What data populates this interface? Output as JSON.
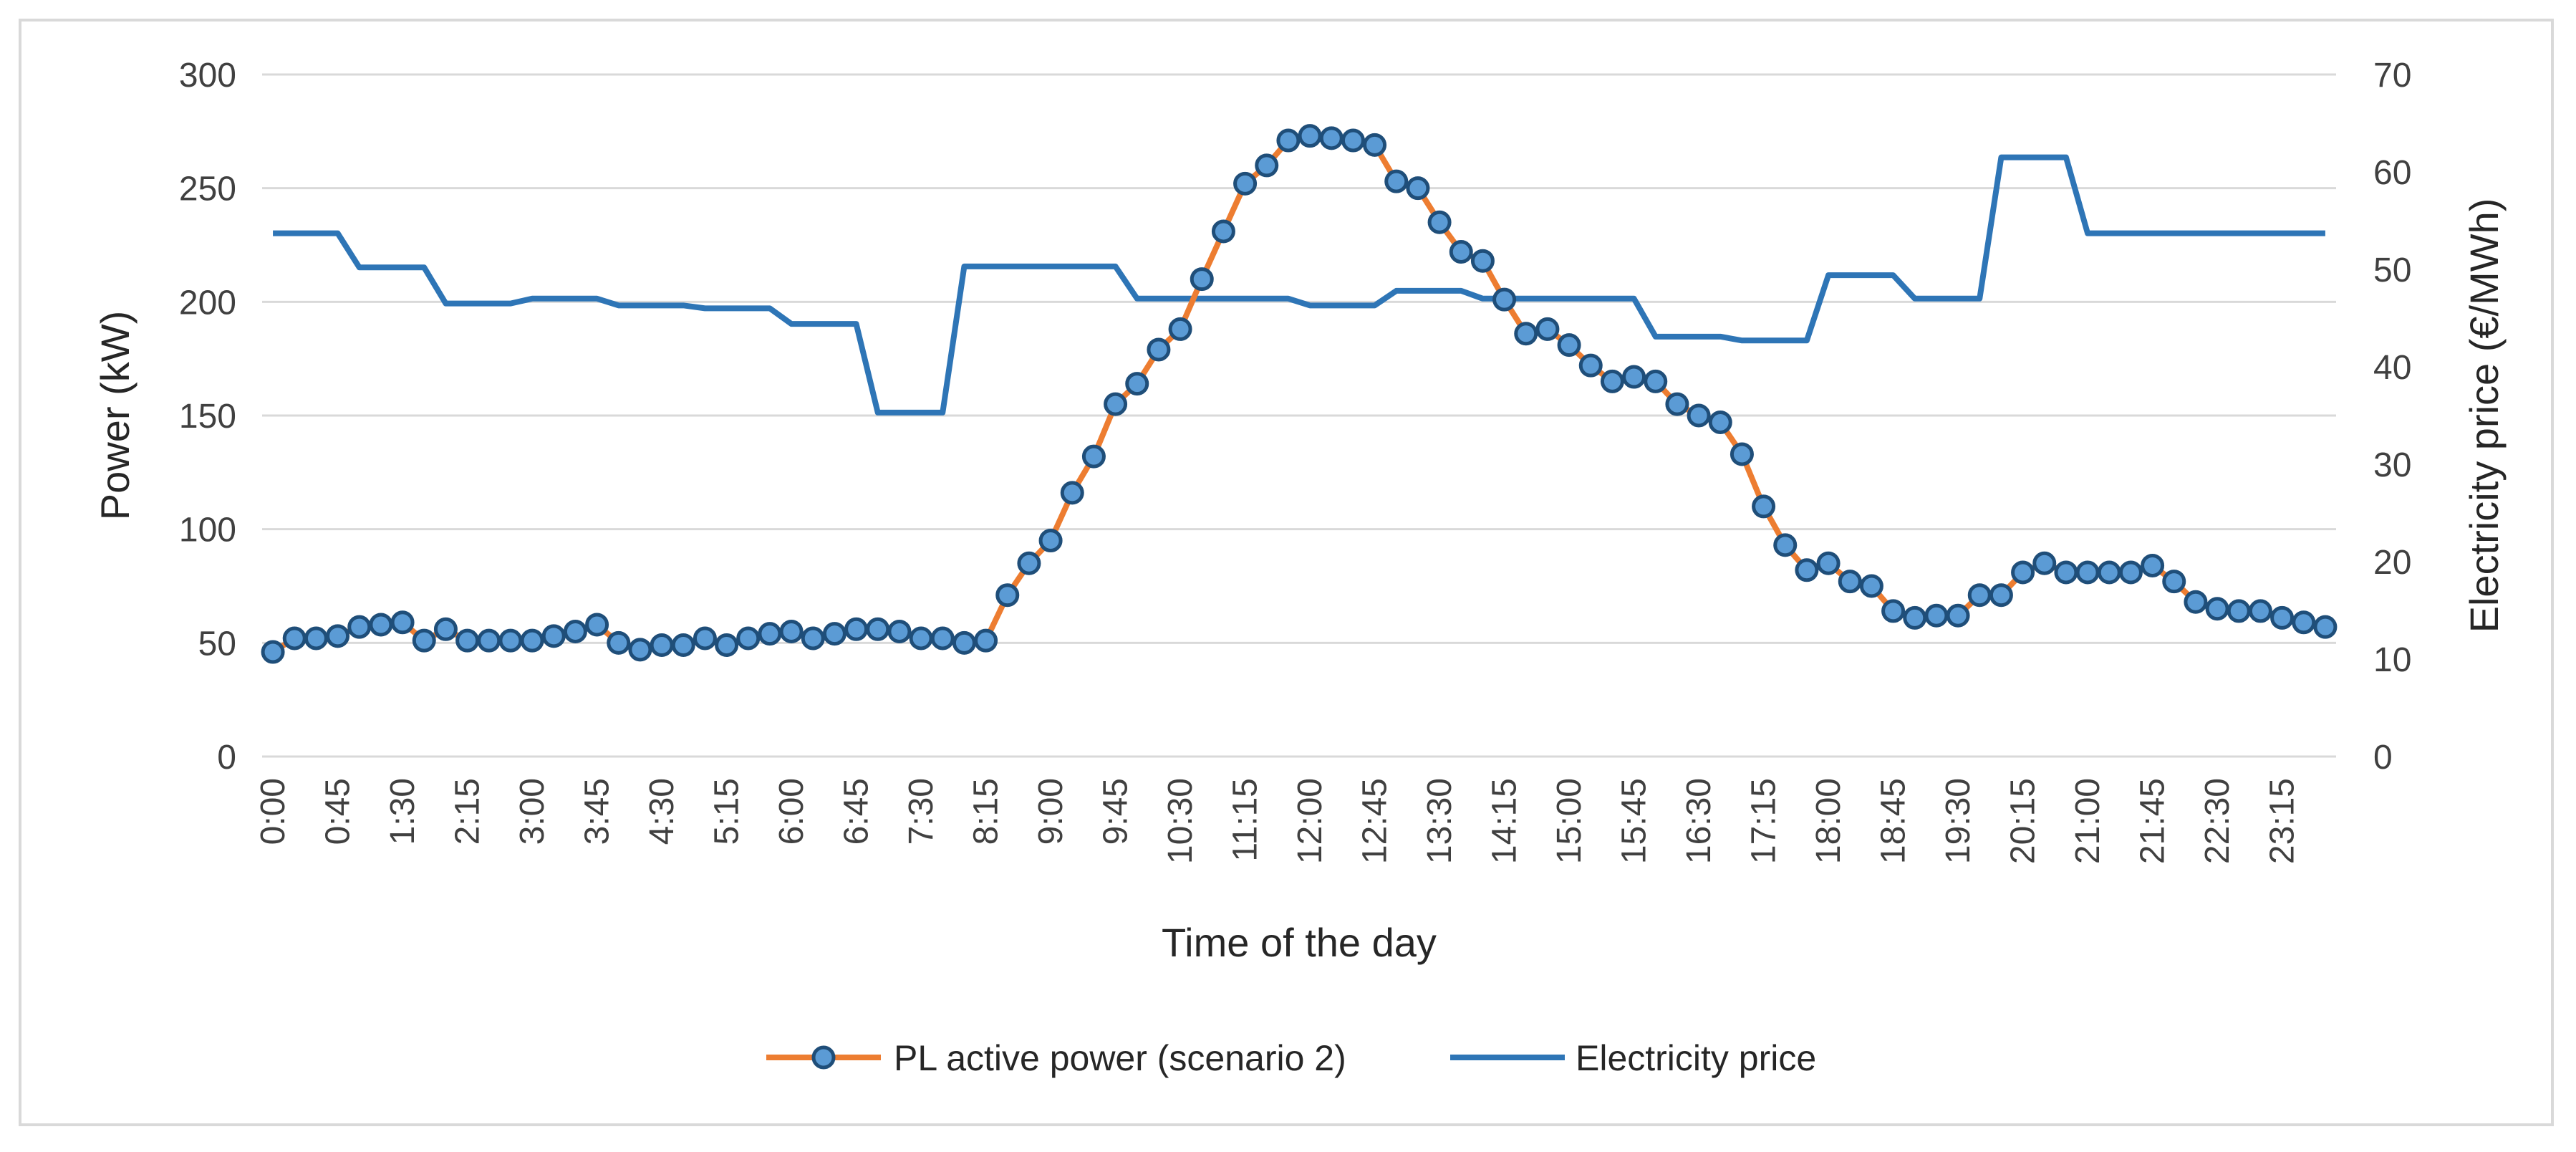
{
  "chart_data": {
    "type": "line",
    "title": "",
    "xlabel": "Time of the day",
    "ylabel": "Power (kW)",
    "y2label": "Electricity price (€/MWh)",
    "ylim": [
      0,
      300
    ],
    "y2lim": [
      0,
      70
    ],
    "y_ticks": [
      "0",
      "50",
      "100",
      "150",
      "200",
      "250",
      "300"
    ],
    "y2_ticks": [
      "0",
      "10",
      "20",
      "30",
      "40",
      "50",
      "60",
      "70"
    ],
    "x": [
      "0:00",
      "0:15",
      "0:30",
      "0:45",
      "1:00",
      "1:15",
      "1:30",
      "1:45",
      "2:00",
      "2:15",
      "2:30",
      "2:45",
      "3:00",
      "3:15",
      "3:30",
      "3:45",
      "4:00",
      "4:15",
      "4:30",
      "4:45",
      "5:00",
      "5:15",
      "5:30",
      "5:45",
      "6:00",
      "6:15",
      "6:30",
      "6:45",
      "7:00",
      "7:15",
      "7:30",
      "7:45",
      "8:00",
      "8:15",
      "8:30",
      "8:45",
      "9:00",
      "9:15",
      "9:30",
      "9:45",
      "10:00",
      "10:15",
      "10:30",
      "10:45",
      "11:00",
      "11:15",
      "11:30",
      "11:45",
      "12:00",
      "12:15",
      "12:30",
      "12:45",
      "13:00",
      "13:15",
      "13:30",
      "13:45",
      "14:00",
      "14:15",
      "14:30",
      "14:45",
      "15:00",
      "15:15",
      "15:30",
      "15:45",
      "16:00",
      "16:15",
      "16:30",
      "16:45",
      "17:00",
      "17:15",
      "17:30",
      "17:45",
      "18:00",
      "18:15",
      "18:30",
      "18:45",
      "19:00",
      "19:15",
      "19:30",
      "19:45",
      "20:00",
      "20:15",
      "20:30",
      "20:45",
      "21:00",
      "21:15",
      "21:30",
      "21:45",
      "22:00",
      "22:15",
      "22:30",
      "22:45",
      "23:00",
      "23:15",
      "23:30",
      "23:45"
    ],
    "x_tick_labels": [
      "0:00",
      "0:45",
      "1:30",
      "2:15",
      "3:00",
      "3:45",
      "4:30",
      "5:15",
      "6:00",
      "6:45",
      "7:30",
      "8:15",
      "9:00",
      "9:45",
      "10:30",
      "11:15",
      "12:00",
      "12:45",
      "13:30",
      "14:15",
      "15:00",
      "15:45",
      "16:30",
      "17:15",
      "18:00",
      "18:45",
      "19:30",
      "20:15",
      "21:00",
      "21:45",
      "22:30",
      "23:15"
    ],
    "series": [
      {
        "name": "PL active power (scenario 2)",
        "axis": "left",
        "color": "#ed7d31",
        "marker_fill": "#5b9bd5",
        "marker_edge": "#1f4e79",
        "values": [
          46,
          52,
          52,
          53,
          57,
          58,
          59,
          51,
          56,
          51,
          51,
          51,
          51,
          53,
          55,
          58,
          50,
          47,
          49,
          49,
          52,
          49,
          52,
          54,
          55,
          52,
          54,
          56,
          56,
          55,
          52,
          52,
          50,
          51,
          71,
          85,
          95,
          116,
          132,
          155,
          164,
          179,
          188,
          210,
          231,
          252,
          260,
          271,
          273,
          272,
          271,
          269,
          253,
          250,
          235,
          222,
          218,
          201,
          186,
          188,
          181,
          172,
          165,
          167,
          165,
          155,
          150,
          147,
          133,
          110,
          93,
          82,
          85,
          77,
          75,
          64,
          61,
          62,
          62,
          71,
          71,
          81,
          85,
          81,
          81,
          81,
          81,
          84,
          77,
          68,
          65,
          64,
          64,
          61,
          59,
          57
        ]
      },
      {
        "name": "Electricity price",
        "axis": "right",
        "color": "#2e75b6",
        "values": [
          53.7,
          53.7,
          53.7,
          53.7,
          50.2,
          50.2,
          50.2,
          50.2,
          46.5,
          46.5,
          46.5,
          46.5,
          47,
          47,
          47,
          47,
          46.3,
          46.3,
          46.3,
          46.3,
          46,
          46,
          46,
          46,
          44.4,
          44.4,
          44.4,
          44.4,
          35.3,
          35.3,
          35.3,
          35.3,
          50.3,
          50.3,
          50.3,
          50.3,
          50.3,
          50.3,
          50.3,
          50.3,
          47,
          47,
          47,
          47,
          47,
          47,
          47,
          47,
          46.3,
          46.3,
          46.3,
          46.3,
          47.8,
          47.8,
          47.8,
          47.8,
          47,
          47,
          47,
          47,
          47,
          47,
          47,
          47,
          43.1,
          43.1,
          43.1,
          43.1,
          42.7,
          42.7,
          42.7,
          42.7,
          49.4,
          49.4,
          49.4,
          49.4,
          47,
          47,
          47,
          47,
          61.5,
          61.5,
          61.5,
          61.5,
          53.7,
          53.7,
          53.7,
          53.7,
          53.7,
          53.7,
          53.7,
          53.7,
          53.7,
          53.7,
          53.7,
          53.7
        ]
      }
    ],
    "grid": true,
    "legend_position": "bottom-center"
  }
}
